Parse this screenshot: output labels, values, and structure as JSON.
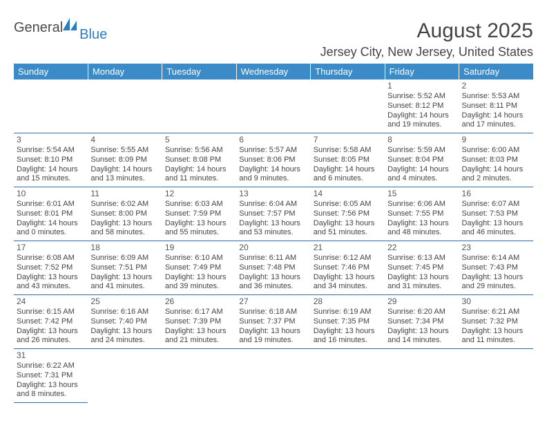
{
  "logo": {
    "text1": "General",
    "text2": "Blue"
  },
  "title": "August 2025",
  "location": "Jersey City, New Jersey, United States",
  "header_bg": "#3b8bc8",
  "header_fg": "#ffffff",
  "row_border": "#2d6ca8",
  "text_color": "#444444",
  "font_family": "Arial, Helvetica, sans-serif",
  "days_of_week": [
    "Sunday",
    "Monday",
    "Tuesday",
    "Wednesday",
    "Thursday",
    "Friday",
    "Saturday"
  ],
  "weeks": [
    [
      null,
      null,
      null,
      null,
      null,
      {
        "n": "1",
        "sr": "Sunrise: 5:52 AM",
        "ss": "Sunset: 8:12 PM",
        "dl1": "Daylight: 14 hours",
        "dl2": "and 19 minutes."
      },
      {
        "n": "2",
        "sr": "Sunrise: 5:53 AM",
        "ss": "Sunset: 8:11 PM",
        "dl1": "Daylight: 14 hours",
        "dl2": "and 17 minutes."
      }
    ],
    [
      {
        "n": "3",
        "sr": "Sunrise: 5:54 AM",
        "ss": "Sunset: 8:10 PM",
        "dl1": "Daylight: 14 hours",
        "dl2": "and 15 minutes."
      },
      {
        "n": "4",
        "sr": "Sunrise: 5:55 AM",
        "ss": "Sunset: 8:09 PM",
        "dl1": "Daylight: 14 hours",
        "dl2": "and 13 minutes."
      },
      {
        "n": "5",
        "sr": "Sunrise: 5:56 AM",
        "ss": "Sunset: 8:08 PM",
        "dl1": "Daylight: 14 hours",
        "dl2": "and 11 minutes."
      },
      {
        "n": "6",
        "sr": "Sunrise: 5:57 AM",
        "ss": "Sunset: 8:06 PM",
        "dl1": "Daylight: 14 hours",
        "dl2": "and 9 minutes."
      },
      {
        "n": "7",
        "sr": "Sunrise: 5:58 AM",
        "ss": "Sunset: 8:05 PM",
        "dl1": "Daylight: 14 hours",
        "dl2": "and 6 minutes."
      },
      {
        "n": "8",
        "sr": "Sunrise: 5:59 AM",
        "ss": "Sunset: 8:04 PM",
        "dl1": "Daylight: 14 hours",
        "dl2": "and 4 minutes."
      },
      {
        "n": "9",
        "sr": "Sunrise: 6:00 AM",
        "ss": "Sunset: 8:03 PM",
        "dl1": "Daylight: 14 hours",
        "dl2": "and 2 minutes."
      }
    ],
    [
      {
        "n": "10",
        "sr": "Sunrise: 6:01 AM",
        "ss": "Sunset: 8:01 PM",
        "dl1": "Daylight: 14 hours",
        "dl2": "and 0 minutes."
      },
      {
        "n": "11",
        "sr": "Sunrise: 6:02 AM",
        "ss": "Sunset: 8:00 PM",
        "dl1": "Daylight: 13 hours",
        "dl2": "and 58 minutes."
      },
      {
        "n": "12",
        "sr": "Sunrise: 6:03 AM",
        "ss": "Sunset: 7:59 PM",
        "dl1": "Daylight: 13 hours",
        "dl2": "and 55 minutes."
      },
      {
        "n": "13",
        "sr": "Sunrise: 6:04 AM",
        "ss": "Sunset: 7:57 PM",
        "dl1": "Daylight: 13 hours",
        "dl2": "and 53 minutes."
      },
      {
        "n": "14",
        "sr": "Sunrise: 6:05 AM",
        "ss": "Sunset: 7:56 PM",
        "dl1": "Daylight: 13 hours",
        "dl2": "and 51 minutes."
      },
      {
        "n": "15",
        "sr": "Sunrise: 6:06 AM",
        "ss": "Sunset: 7:55 PM",
        "dl1": "Daylight: 13 hours",
        "dl2": "and 48 minutes."
      },
      {
        "n": "16",
        "sr": "Sunrise: 6:07 AM",
        "ss": "Sunset: 7:53 PM",
        "dl1": "Daylight: 13 hours",
        "dl2": "and 46 minutes."
      }
    ],
    [
      {
        "n": "17",
        "sr": "Sunrise: 6:08 AM",
        "ss": "Sunset: 7:52 PM",
        "dl1": "Daylight: 13 hours",
        "dl2": "and 43 minutes."
      },
      {
        "n": "18",
        "sr": "Sunrise: 6:09 AM",
        "ss": "Sunset: 7:51 PM",
        "dl1": "Daylight: 13 hours",
        "dl2": "and 41 minutes."
      },
      {
        "n": "19",
        "sr": "Sunrise: 6:10 AM",
        "ss": "Sunset: 7:49 PM",
        "dl1": "Daylight: 13 hours",
        "dl2": "and 39 minutes."
      },
      {
        "n": "20",
        "sr": "Sunrise: 6:11 AM",
        "ss": "Sunset: 7:48 PM",
        "dl1": "Daylight: 13 hours",
        "dl2": "and 36 minutes."
      },
      {
        "n": "21",
        "sr": "Sunrise: 6:12 AM",
        "ss": "Sunset: 7:46 PM",
        "dl1": "Daylight: 13 hours",
        "dl2": "and 34 minutes."
      },
      {
        "n": "22",
        "sr": "Sunrise: 6:13 AM",
        "ss": "Sunset: 7:45 PM",
        "dl1": "Daylight: 13 hours",
        "dl2": "and 31 minutes."
      },
      {
        "n": "23",
        "sr": "Sunrise: 6:14 AM",
        "ss": "Sunset: 7:43 PM",
        "dl1": "Daylight: 13 hours",
        "dl2": "and 29 minutes."
      }
    ],
    [
      {
        "n": "24",
        "sr": "Sunrise: 6:15 AM",
        "ss": "Sunset: 7:42 PM",
        "dl1": "Daylight: 13 hours",
        "dl2": "and 26 minutes."
      },
      {
        "n": "25",
        "sr": "Sunrise: 6:16 AM",
        "ss": "Sunset: 7:40 PM",
        "dl1": "Daylight: 13 hours",
        "dl2": "and 24 minutes."
      },
      {
        "n": "26",
        "sr": "Sunrise: 6:17 AM",
        "ss": "Sunset: 7:39 PM",
        "dl1": "Daylight: 13 hours",
        "dl2": "and 21 minutes."
      },
      {
        "n": "27",
        "sr": "Sunrise: 6:18 AM",
        "ss": "Sunset: 7:37 PM",
        "dl1": "Daylight: 13 hours",
        "dl2": "and 19 minutes."
      },
      {
        "n": "28",
        "sr": "Sunrise: 6:19 AM",
        "ss": "Sunset: 7:35 PM",
        "dl1": "Daylight: 13 hours",
        "dl2": "and 16 minutes."
      },
      {
        "n": "29",
        "sr": "Sunrise: 6:20 AM",
        "ss": "Sunset: 7:34 PM",
        "dl1": "Daylight: 13 hours",
        "dl2": "and 14 minutes."
      },
      {
        "n": "30",
        "sr": "Sunrise: 6:21 AM",
        "ss": "Sunset: 7:32 PM",
        "dl1": "Daylight: 13 hours",
        "dl2": "and 11 minutes."
      }
    ],
    [
      {
        "n": "31",
        "sr": "Sunrise: 6:22 AM",
        "ss": "Sunset: 7:31 PM",
        "dl1": "Daylight: 13 hours",
        "dl2": "and 8 minutes."
      },
      null,
      null,
      null,
      null,
      null,
      null
    ]
  ]
}
